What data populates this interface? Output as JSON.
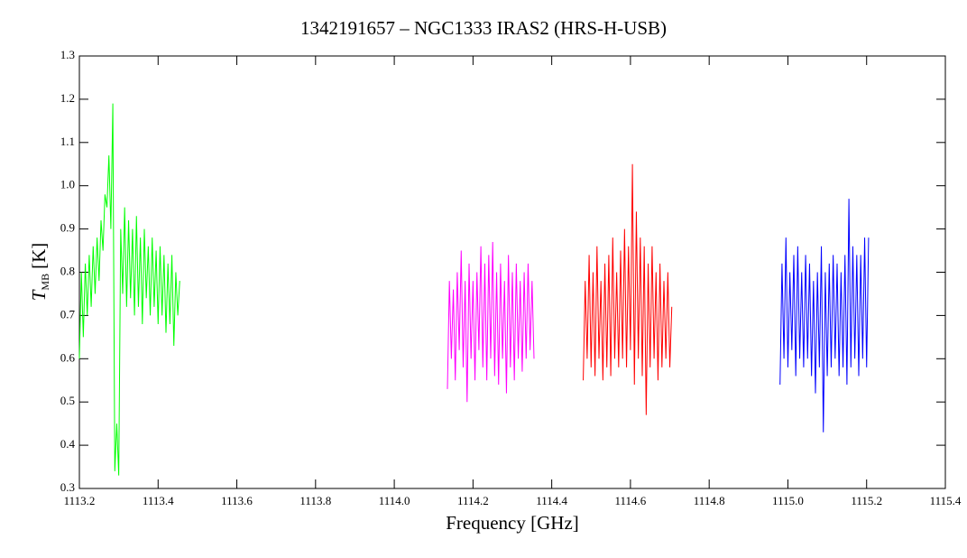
{
  "chart_data": {
    "type": "line",
    "title": "1342191657 – NGC1333 IRAS2 (HRS-H-USB)",
    "x_label": "Frequency [GHz]",
    "y_label": {
      "symbol": "T",
      "subscript": "MB",
      "unit": "[K]"
    },
    "xlim": [
      1113.2,
      1115.4
    ],
    "ylim": [
      0.3,
      1.3
    ],
    "xticks": [
      1113.2,
      1113.4,
      1113.6,
      1113.8,
      {
        "value": 1114,
        "label": "1114.0"
      },
      1114.2,
      1114.4,
      1114.6,
      1114.8,
      {
        "value": 1115,
        "label": "1115.0"
      },
      1115.2,
      1115.4
    ],
    "yticks": [
      0.3,
      0.4,
      0.5,
      0.6,
      0.7,
      0.8,
      0.9,
      {
        "value": 1,
        "label": "1.0"
      },
      1.1,
      1.2,
      1.3
    ],
    "series": [
      {
        "color": "#00ff00",
        "x": [
          1113.2,
          1113.205,
          1113.21,
          1113.215,
          1113.22,
          1113.225,
          1113.23,
          1113.235,
          1113.24,
          1113.245,
          1113.25,
          1113.255,
          1113.26,
          1113.265,
          1113.27,
          1113.275,
          1113.28,
          1113.285,
          1113.29,
          1113.295,
          1113.3,
          1113.305,
          1113.31,
          1113.315,
          1113.32,
          1113.325,
          1113.33,
          1113.335,
          1113.34,
          1113.345,
          1113.35,
          1113.355,
          1113.36,
          1113.365,
          1113.37,
          1113.375,
          1113.38,
          1113.385,
          1113.39,
          1113.395,
          1113.4,
          1113.405,
          1113.41,
          1113.415,
          1113.42,
          1113.425,
          1113.43,
          1113.435,
          1113.44,
          1113.445,
          1113.45,
          1113.455
        ],
        "values": [
          0.6,
          0.8,
          0.65,
          0.82,
          0.7,
          0.84,
          0.72,
          0.86,
          0.75,
          0.88,
          0.78,
          0.92,
          0.85,
          0.98,
          0.95,
          1.07,
          0.9,
          1.19,
          0.34,
          0.45,
          0.33,
          0.9,
          0.75,
          0.95,
          0.72,
          0.92,
          0.74,
          0.9,
          0.7,
          0.93,
          0.72,
          0.88,
          0.68,
          0.9,
          0.74,
          0.86,
          0.7,
          0.88,
          0.72,
          0.85,
          0.68,
          0.86,
          0.7,
          0.84,
          0.66,
          0.82,
          0.68,
          0.84,
          0.63,
          0.8,
          0.7,
          0.78
        ]
      },
      {
        "color": "#ff00ff",
        "x": [
          1114.135,
          1114.14,
          1114.145,
          1114.15,
          1114.155,
          1114.16,
          1114.165,
          1114.17,
          1114.175,
          1114.18,
          1114.185,
          1114.19,
          1114.195,
          1114.2,
          1114.205,
          1114.21,
          1114.215,
          1114.22,
          1114.225,
          1114.23,
          1114.235,
          1114.24,
          1114.245,
          1114.25,
          1114.255,
          1114.26,
          1114.265,
          1114.27,
          1114.275,
          1114.28,
          1114.285,
          1114.29,
          1114.295,
          1114.3,
          1114.305,
          1114.31,
          1114.315,
          1114.32,
          1114.325,
          1114.33,
          1114.335,
          1114.34,
          1114.345,
          1114.35,
          1114.355
        ],
        "values": [
          0.53,
          0.78,
          0.6,
          0.76,
          0.55,
          0.8,
          0.62,
          0.85,
          0.58,
          0.78,
          0.5,
          0.82,
          0.6,
          0.78,
          0.55,
          0.8,
          0.62,
          0.86,
          0.58,
          0.82,
          0.55,
          0.84,
          0.6,
          0.87,
          0.56,
          0.8,
          0.54,
          0.82,
          0.6,
          0.78,
          0.52,
          0.84,
          0.58,
          0.8,
          0.55,
          0.82,
          0.6,
          0.78,
          0.57,
          0.8,
          0.6,
          0.82,
          0.62,
          0.78,
          0.6
        ]
      },
      {
        "color": "#ff0000",
        "x": [
          1114.48,
          1114.485,
          1114.49,
          1114.495,
          1114.5,
          1114.505,
          1114.51,
          1114.515,
          1114.52,
          1114.525,
          1114.53,
          1114.535,
          1114.54,
          1114.545,
          1114.55,
          1114.555,
          1114.56,
          1114.565,
          1114.57,
          1114.575,
          1114.58,
          1114.585,
          1114.59,
          1114.595,
          1114.6,
          1114.605,
          1114.61,
          1114.615,
          1114.62,
          1114.625,
          1114.63,
          1114.635,
          1114.64,
          1114.645,
          1114.65,
          1114.655,
          1114.66,
          1114.665,
          1114.67,
          1114.675,
          1114.68,
          1114.685,
          1114.69,
          1114.695,
          1114.7,
          1114.705
        ],
        "values": [
          0.55,
          0.78,
          0.6,
          0.84,
          0.58,
          0.8,
          0.56,
          0.86,
          0.6,
          0.78,
          0.55,
          0.82,
          0.58,
          0.84,
          0.56,
          0.88,
          0.6,
          0.8,
          0.58,
          0.85,
          0.6,
          0.9,
          0.58,
          0.86,
          0.62,
          1.05,
          0.54,
          0.94,
          0.6,
          0.88,
          0.56,
          0.86,
          0.47,
          0.82,
          0.58,
          0.86,
          0.6,
          0.8,
          0.55,
          0.82,
          0.58,
          0.78,
          0.6,
          0.8,
          0.58,
          0.72
        ]
      },
      {
        "color": "#0000ff",
        "x": [
          1114.98,
          1114.985,
          1114.99,
          1114.995,
          1115,
          1115.005,
          1115.01,
          1115.015,
          1115.02,
          1115.025,
          1115.03,
          1115.035,
          1115.04,
          1115.045,
          1115.05,
          1115.055,
          1115.06,
          1115.065,
          1115.07,
          1115.075,
          1115.08,
          1115.085,
          1115.09,
          1115.095,
          1115.1,
          1115.105,
          1115.11,
          1115.115,
          1115.12,
          1115.125,
          1115.13,
          1115.135,
          1115.14,
          1115.145,
          1115.15,
          1115.155,
          1115.16,
          1115.165,
          1115.17,
          1115.175,
          1115.18,
          1115.185,
          1115.19,
          1115.195,
          1115.2,
          1115.205
        ],
        "values": [
          0.54,
          0.82,
          0.6,
          0.88,
          0.58,
          0.8,
          0.62,
          0.84,
          0.56,
          0.86,
          0.6,
          0.8,
          0.58,
          0.84,
          0.6,
          0.82,
          0.56,
          0.78,
          0.52,
          0.8,
          0.58,
          0.86,
          0.43,
          0.8,
          0.56,
          0.82,
          0.58,
          0.84,
          0.6,
          0.82,
          0.56,
          0.8,
          0.58,
          0.84,
          0.54,
          0.97,
          0.58,
          0.86,
          0.6,
          0.84,
          0.56,
          0.84,
          0.6,
          0.88,
          0.58,
          0.88
        ]
      }
    ]
  }
}
